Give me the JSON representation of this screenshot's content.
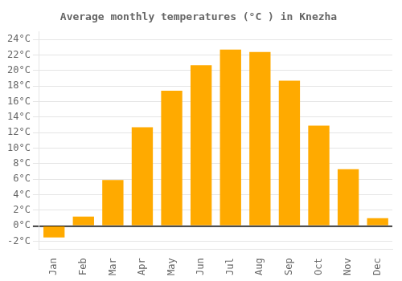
{
  "chart_data": {
    "type": "bar",
    "title": "Average monthly temperatures (°C ) in Knezha",
    "categories": [
      "Jan",
      "Feb",
      "Mar",
      "Apr",
      "May",
      "Jun",
      "Jul",
      "Aug",
      "Sep",
      "Oct",
      "Nov",
      "Dec"
    ],
    "values": [
      -1.5,
      1.2,
      5.9,
      12.7,
      17.4,
      20.7,
      22.7,
      22.4,
      18.7,
      12.9,
      7.3,
      1.0
    ],
    "color": "#FFAA00",
    "ylim": [
      -3,
      25
    ],
    "yticks": [
      {
        "value": -2,
        "label": "-2°C"
      },
      {
        "value": 0,
        "label": "0°C"
      },
      {
        "value": 2,
        "label": "2°C"
      },
      {
        "value": 4,
        "label": "4°C"
      },
      {
        "value": 6,
        "label": "6°C"
      },
      {
        "value": 8,
        "label": "8°C"
      },
      {
        "value": 10,
        "label": "10°C"
      },
      {
        "value": 12,
        "label": "12°C"
      },
      {
        "value": 14,
        "label": "14°C"
      },
      {
        "value": 16,
        "label": "16°C"
      },
      {
        "value": 18,
        "label": "18°C"
      },
      {
        "value": 20,
        "label": "20°C"
      },
      {
        "value": 22,
        "label": "22°C"
      },
      {
        "value": 24,
        "label": "24°C"
      }
    ],
    "grid": true
  }
}
